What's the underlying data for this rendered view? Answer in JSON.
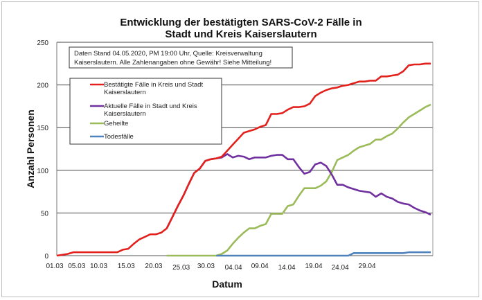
{
  "chart_data": {
    "type": "line",
    "title": [
      "Entwicklung der bestätigten SARS-CoV-2 Fälle in",
      "Stadt und Kreis Kaiserslautern"
    ],
    "xlabel": "Datum",
    "ylabel": "Anzahl Personen",
    "ylim": [
      0,
      250
    ],
    "yticks": [
      0,
      50,
      100,
      150,
      200,
      250
    ],
    "grid": true,
    "x_count": 69,
    "xticks": [
      {
        "index": 0,
        "label": "01.03"
      },
      {
        "index": 4,
        "label": "05.03"
      },
      {
        "index": 8,
        "label": "10.03"
      },
      {
        "index": 13,
        "label": "15.03"
      },
      {
        "index": 18,
        "label": "20.03"
      },
      {
        "index": 23,
        "label": "25.03"
      },
      {
        "index": 27.5,
        "label": "30.03"
      },
      {
        "index": 32.5,
        "label": "04.04"
      },
      {
        "index": 37.3,
        "label": "09.04"
      },
      {
        "index": 42.2,
        "label": "14.04"
      },
      {
        "index": 47.1,
        "label": "19.04"
      },
      {
        "index": 51.9,
        "label": "24.04"
      },
      {
        "index": 56.8,
        "label": "29.04"
      }
    ],
    "annotation": [
      "Daten Stand 04.05.2020, PM 19:00 Uhr, Quelle: Kreisverwaltung",
      "Kaiserslautern. Alle Zahlenangaben ohne Gewähr! Siehe Mitteilung!"
    ],
    "legend_position": "top-left",
    "series": [
      {
        "name": [
          "Bestätigte Fälle in Kreis und Stadt",
          "Kaiserslautern"
        ],
        "color": "#e3211c",
        "start": 0,
        "values": [
          0,
          1,
          2,
          4,
          4,
          4,
          4,
          4,
          4,
          4,
          4,
          4,
          7,
          8,
          14,
          19,
          22,
          25,
          25,
          27,
          32,
          45,
          58,
          70,
          84,
          97,
          102,
          111,
          113,
          114,
          116,
          123,
          130,
          137,
          144,
          146,
          148,
          151,
          153,
          166,
          166,
          167,
          171,
          174,
          174,
          175,
          178,
          187,
          191,
          194,
          196,
          197,
          199,
          200,
          202,
          204,
          204,
          205,
          205,
          210,
          210,
          211,
          212,
          216,
          223,
          224,
          224,
          225,
          225
        ]
      },
      {
        "name": [
          "Aktuelle Fälle in Stadt und Kreis",
          "Kaiserslautern"
        ],
        "color": "#7030a0",
        "start": 20,
        "values": [
          32,
          45,
          58,
          70,
          84,
          97,
          102,
          111,
          113,
          114,
          115,
          119,
          115,
          117,
          116,
          113,
          115,
          115,
          115,
          117,
          118,
          118,
          113,
          113,
          104,
          96,
          98,
          107,
          109,
          105,
          95,
          83,
          83,
          80,
          78,
          76,
          75,
          74,
          69,
          73,
          69,
          67,
          63,
          61,
          60,
          56,
          53,
          51,
          48
        ]
      },
      {
        "name": [
          "Geheilte"
        ],
        "color": "#9bbb59",
        "start": 20,
        "values": [
          0,
          0,
          0,
          0,
          0,
          0,
          0,
          0,
          0,
          0,
          2,
          6,
          14,
          21,
          27,
          32,
          32,
          35,
          37,
          49,
          49,
          49,
          58,
          60,
          70,
          79,
          79,
          79,
          82,
          87,
          98,
          112,
          115,
          118,
          123,
          127,
          129,
          131,
          136,
          136,
          140,
          143,
          149,
          156,
          162,
          166,
          170,
          174,
          177
        ]
      },
      {
        "name": [
          "Todesfälle"
        ],
        "color": "#4f81bd",
        "start": 29,
        "values": [
          0,
          0,
          0,
          0,
          0,
          0,
          0,
          0,
          0,
          0,
          0,
          0,
          0,
          0,
          0,
          0,
          0,
          0,
          0,
          0,
          0,
          0,
          0,
          0,
          0,
          3,
          3,
          3,
          3,
          3,
          3,
          3,
          3,
          3,
          3,
          4,
          4,
          4,
          4,
          4
        ]
      }
    ]
  }
}
